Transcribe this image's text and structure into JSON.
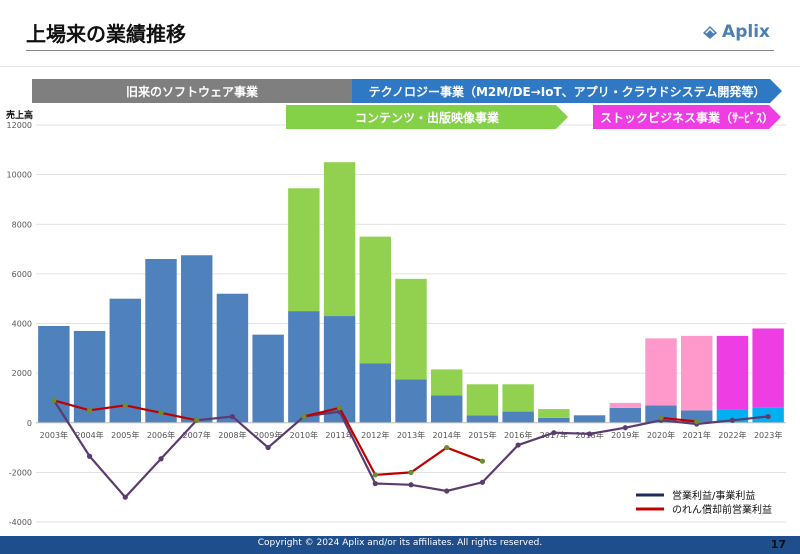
{
  "page": {
    "title": "上場来の業績推移",
    "logo_text": "Aplix",
    "footer": "Copyright © 2024  Aplix and/or its affiliates. All rights reserved.",
    "page_number": "17",
    "colors": {
      "brand": "#4a7fb8",
      "footer_bg": "#1f4e8c"
    }
  },
  "bands": [
    {
      "label": "旧来のソフトウェア事業",
      "color": "#7f7f7f"
    },
    {
      "label": "テクノロジー事業（M2M/DE→IoT、アプリ・クラウドシステム開発等）",
      "color": "#2f78c4"
    },
    {
      "label": "コンテンツ・出版映像事業",
      "color": "#84d046"
    },
    {
      "label": "ストックビジネス事業（ｻｰﾋﾞｽ）",
      "color": "#ee3ee3"
    }
  ],
  "chart_data": {
    "type": "bar",
    "ylabel": "売上高",
    "ylim": [
      -4000,
      12000
    ],
    "yticks": [
      -4000,
      -2000,
      0,
      2000,
      4000,
      6000,
      8000,
      10000,
      12000
    ],
    "grid": true,
    "legend_position": "bottom-right",
    "categories": [
      "2003年",
      "2004年",
      "2005年",
      "2006年",
      "2007年",
      "2008年",
      "2009年",
      "2010年",
      "2011年",
      "2012年",
      "2013年",
      "2014年",
      "2015年",
      "2016年",
      "2017年",
      "2018年",
      "2019年",
      "2020年",
      "2021年",
      "2022年",
      "2023年"
    ],
    "stacked_series": [
      {
        "color": "#4f81bd",
        "values": [
          3900,
          3700,
          5000,
          6600,
          6750,
          5200,
          3550,
          4500,
          4300,
          2400,
          1750,
          1100,
          300,
          450,
          200,
          300,
          600,
          700,
          500,
          0,
          0
        ]
      },
      {
        "color": "#92d050",
        "values": [
          0,
          0,
          0,
          0,
          0,
          0,
          0,
          4950,
          6200,
          5100,
          4050,
          1050,
          1250,
          1100,
          350,
          0,
          0,
          0,
          0,
          0,
          0
        ]
      },
      {
        "color": "#ff99cc",
        "values": [
          0,
          0,
          0,
          0,
          0,
          0,
          0,
          0,
          0,
          0,
          0,
          0,
          0,
          0,
          0,
          0,
          200,
          2700,
          3000,
          0,
          0
        ]
      },
      {
        "color": "#00b0f0",
        "values": [
          0,
          0,
          0,
          0,
          0,
          0,
          0,
          0,
          0,
          0,
          0,
          0,
          0,
          0,
          0,
          0,
          0,
          0,
          0,
          550,
          600
        ]
      },
      {
        "color": "#ee3ee3",
        "values": [
          0,
          0,
          0,
          0,
          0,
          0,
          0,
          0,
          0,
          0,
          0,
          0,
          0,
          0,
          0,
          0,
          0,
          0,
          0,
          2950,
          3200
        ]
      }
    ],
    "series": [
      {
        "name": "営業利益/事業利益",
        "type": "line",
        "color": "#5a3c70",
        "values": [
          900,
          -1350,
          -3000,
          -1450,
          100,
          250,
          -1000,
          250,
          450,
          -2450,
          -2500,
          -2750,
          -2400,
          -900,
          -400,
          -450,
          -200,
          100,
          -50,
          100,
          250
        ]
      },
      {
        "name": "のれん償却前営業利益",
        "type": "line",
        "color": "#c00000",
        "values": [
          900,
          500,
          700,
          400,
          100,
          null,
          null,
          250,
          600,
          -2100,
          -2000,
          -1000,
          -1550,
          null,
          null,
          null,
          null,
          200,
          50,
          null,
          null
        ]
      }
    ],
    "legend_colors": [
      "#1f2a5a",
      "#c00000"
    ]
  }
}
